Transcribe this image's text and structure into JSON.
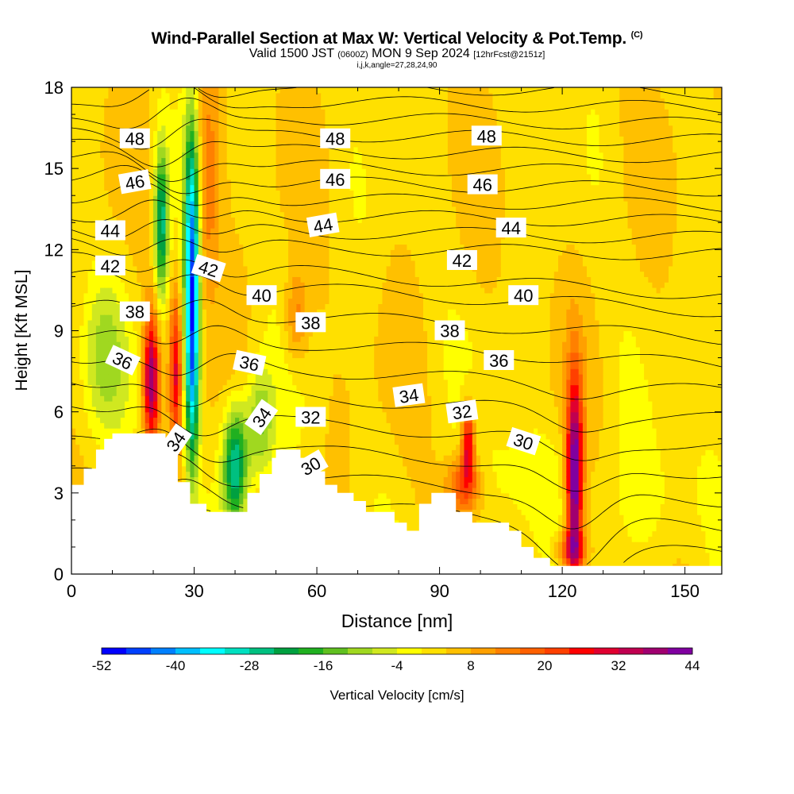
{
  "header": {
    "title": "Wind-Parallel Section at Max W: Vertical Velocity & Pot.Temp.",
    "title_suffix": "(C)",
    "valid_prefix": "Valid 1500 JST",
    "valid_zulu": "(0600Z)",
    "valid_date": "MON 9 Sep 2024",
    "forecast": "[12hrFcst@2151z]",
    "indices": "i,j,k,angle=27,28,24,90"
  },
  "chart_data": {
    "type": "heatmap",
    "xlabel": "Distance [nm]",
    "ylabel": "Height [Kft MSL]",
    "xlim": [
      0,
      159
    ],
    "ylim": [
      0,
      18
    ],
    "xticks": [
      0,
      30,
      60,
      90,
      120,
      150
    ],
    "yticks": [
      0,
      3,
      6,
      9,
      12,
      15,
      18
    ],
    "colorbar": {
      "label": "Vertical Velocity [cm/s]",
      "ticks": [
        -52,
        -40,
        -28,
        -16,
        -4,
        8,
        20,
        32,
        44
      ],
      "min": -52,
      "max": 44,
      "step": 4,
      "colors": [
        "#0000ff",
        "#0040ff",
        "#0080ff",
        "#00bfff",
        "#00ffff",
        "#00e0c0",
        "#00c080",
        "#00a040",
        "#20b020",
        "#60c020",
        "#a0d820",
        "#d0e820",
        "#ffff00",
        "#ffe000",
        "#ffc000",
        "#ffa000",
        "#ff8000",
        "#ff6000",
        "#ff4000",
        "#ff0000",
        "#e00030",
        "#c00050",
        "#a00070",
        "#8000a0"
      ]
    },
    "terrain_kft": [
      {
        "x": 0,
        "h": 3.3
      },
      {
        "x": 3,
        "h": 3.3
      },
      {
        "x": 3,
        "h": 3.9
      },
      {
        "x": 6,
        "h": 3.9
      },
      {
        "x": 6,
        "h": 4.6
      },
      {
        "x": 8,
        "h": 4.6
      },
      {
        "x": 8,
        "h": 5.0
      },
      {
        "x": 10,
        "h": 5.0
      },
      {
        "x": 10,
        "h": 5.2
      },
      {
        "x": 23,
        "h": 5.2
      },
      {
        "x": 23,
        "h": 4.5
      },
      {
        "x": 26,
        "h": 4.5
      },
      {
        "x": 26,
        "h": 3.4
      },
      {
        "x": 29,
        "h": 3.4
      },
      {
        "x": 29,
        "h": 2.6
      },
      {
        "x": 33,
        "h": 2.6
      },
      {
        "x": 33,
        "h": 2.3
      },
      {
        "x": 43,
        "h": 2.3
      },
      {
        "x": 43,
        "h": 3.0
      },
      {
        "x": 46,
        "h": 3.0
      },
      {
        "x": 46,
        "h": 3.7
      },
      {
        "x": 49,
        "h": 3.7
      },
      {
        "x": 49,
        "h": 4.3
      },
      {
        "x": 50,
        "h": 4.3
      },
      {
        "x": 50,
        "h": 4.6
      },
      {
        "x": 56,
        "h": 4.6
      },
      {
        "x": 56,
        "h": 4.3
      },
      {
        "x": 59,
        "h": 4.3
      },
      {
        "x": 59,
        "h": 3.8
      },
      {
        "x": 62,
        "h": 3.8
      },
      {
        "x": 62,
        "h": 3.3
      },
      {
        "x": 65,
        "h": 3.3
      },
      {
        "x": 65,
        "h": 3.0
      },
      {
        "x": 69,
        "h": 3.0
      },
      {
        "x": 69,
        "h": 2.7
      },
      {
        "x": 72,
        "h": 2.7
      },
      {
        "x": 72,
        "h": 2.3
      },
      {
        "x": 79,
        "h": 2.3
      },
      {
        "x": 79,
        "h": 1.9
      },
      {
        "x": 82,
        "h": 1.9
      },
      {
        "x": 82,
        "h": 1.6
      },
      {
        "x": 85,
        "h": 1.6
      },
      {
        "x": 85,
        "h": 2.6
      },
      {
        "x": 88,
        "h": 2.6
      },
      {
        "x": 88,
        "h": 3.0
      },
      {
        "x": 94,
        "h": 3.0
      },
      {
        "x": 94,
        "h": 2.3
      },
      {
        "x": 98,
        "h": 2.3
      },
      {
        "x": 98,
        "h": 1.9
      },
      {
        "x": 107,
        "h": 1.9
      },
      {
        "x": 107,
        "h": 1.6
      },
      {
        "x": 110,
        "h": 1.6
      },
      {
        "x": 110,
        "h": 1.0
      },
      {
        "x": 113,
        "h": 1.0
      },
      {
        "x": 113,
        "h": 0.6
      },
      {
        "x": 117,
        "h": 0.6
      },
      {
        "x": 117,
        "h": 0.3
      },
      {
        "x": 159,
        "h": 0.3
      }
    ],
    "updrafts": [
      {
        "x": 19.5,
        "z": 7.2,
        "w": 36,
        "sx": 1.3,
        "sz": 1.7
      },
      {
        "x": 25.5,
        "z": 7.5,
        "w": 24,
        "sx": 1.0,
        "sz": 2.0
      },
      {
        "x": 33,
        "z": 14.5,
        "w": 14,
        "sx": 2.5,
        "sz": 3.0
      },
      {
        "x": 55,
        "z": 9.5,
        "w": 12,
        "sx": 2.0,
        "sz": 1.2
      },
      {
        "x": 97,
        "z": 4.9,
        "w": 28,
        "sx": 1.1,
        "sz": 1.0
      },
      {
        "x": 96,
        "z": 3.3,
        "w": 20,
        "sx": 3.0,
        "sz": 0.8
      },
      {
        "x": 123,
        "z": 3.5,
        "w": 44,
        "sx": 1.4,
        "sz": 2.6
      },
      {
        "x": 122,
        "z": 0.9,
        "w": 18,
        "sx": 2.5,
        "sz": 0.5
      }
    ],
    "downdrafts": [
      {
        "x": 29.5,
        "z": 12.0,
        "w": -46,
        "sx": 1.3,
        "sz": 3.5
      },
      {
        "x": 29.5,
        "z": 7.0,
        "w": -28,
        "sx": 1.2,
        "sz": 2.5
      },
      {
        "x": 22,
        "z": 13.0,
        "w": -30,
        "sx": 1.2,
        "sz": 2.0
      },
      {
        "x": 40,
        "z": 4.0,
        "w": -32,
        "sx": 2.0,
        "sz": 1.5
      },
      {
        "x": 46,
        "z": 5.5,
        "w": -16,
        "sx": 2.5,
        "sz": 1.5
      },
      {
        "x": 8,
        "z": 8.0,
        "w": -10,
        "sx": 4.0,
        "sz": 2.0
      },
      {
        "x": 108,
        "z": 3.5,
        "w": -6,
        "sx": 8.0,
        "sz": 1.5
      },
      {
        "x": 145,
        "z": 2.5,
        "w": -5,
        "sx": 10.0,
        "sz": 2.0
      }
    ],
    "isentropes_c": [
      28,
      29,
      30,
      31,
      32,
      33,
      34,
      35,
      36,
      37,
      38,
      39,
      40,
      41,
      42,
      43,
      44,
      45,
      46,
      47,
      48,
      49,
      50
    ],
    "contour_labels": [
      {
        "text": "48",
        "x": 15.5,
        "z": 16.1,
        "rot": 0
      },
      {
        "text": "48",
        "x": 64.5,
        "z": 16.1,
        "rot": 0
      },
      {
        "text": "48",
        "x": 101.5,
        "z": 16.2,
        "rot": 0
      },
      {
        "text": "46",
        "x": 15.5,
        "z": 14.5,
        "rot": -10
      },
      {
        "text": "46",
        "x": 64.5,
        "z": 14.6,
        "rot": 0
      },
      {
        "text": "46",
        "x": 100.5,
        "z": 14.4,
        "rot": 0
      },
      {
        "text": "44",
        "x": 9.5,
        "z": 12.7,
        "rot": 0
      },
      {
        "text": "44",
        "x": 61.5,
        "z": 12.9,
        "rot": -10
      },
      {
        "text": "44",
        "x": 107.5,
        "z": 12.8,
        "rot": 0
      },
      {
        "text": "42",
        "x": 9.5,
        "z": 11.4,
        "rot": 0
      },
      {
        "text": "42",
        "x": 33.5,
        "z": 11.3,
        "rot": 18
      },
      {
        "text": "42",
        "x": 95.5,
        "z": 11.6,
        "rot": 0
      },
      {
        "text": "40",
        "x": 46.5,
        "z": 10.3,
        "rot": 0
      },
      {
        "text": "40",
        "x": 110.5,
        "z": 10.3,
        "rot": 0
      },
      {
        "text": "38",
        "x": 15.5,
        "z": 9.7,
        "rot": 0
      },
      {
        "text": "38",
        "x": 58.5,
        "z": 9.3,
        "rot": 0
      },
      {
        "text": "38",
        "x": 92.5,
        "z": 9.0,
        "rot": 0
      },
      {
        "text": "36",
        "x": 12.5,
        "z": 7.9,
        "rot": 25
      },
      {
        "text": "36",
        "x": 43.5,
        "z": 7.8,
        "rot": 12
      },
      {
        "text": "36",
        "x": 104.5,
        "z": 7.9,
        "rot": 0
      },
      {
        "text": "34",
        "x": 25.5,
        "z": 4.9,
        "rot": -55
      },
      {
        "text": "34",
        "x": 46.5,
        "z": 5.8,
        "rot": -55
      },
      {
        "text": "34",
        "x": 82.5,
        "z": 6.6,
        "rot": -8
      },
      {
        "text": "32",
        "x": 58.5,
        "z": 5.8,
        "rot": 0
      },
      {
        "text": "32",
        "x": 95.5,
        "z": 6.0,
        "rot": -8
      },
      {
        "text": "30",
        "x": 58.5,
        "z": 4.0,
        "rot": -30
      },
      {
        "text": "30",
        "x": 110.5,
        "z": 4.9,
        "rot": 18
      }
    ]
  }
}
